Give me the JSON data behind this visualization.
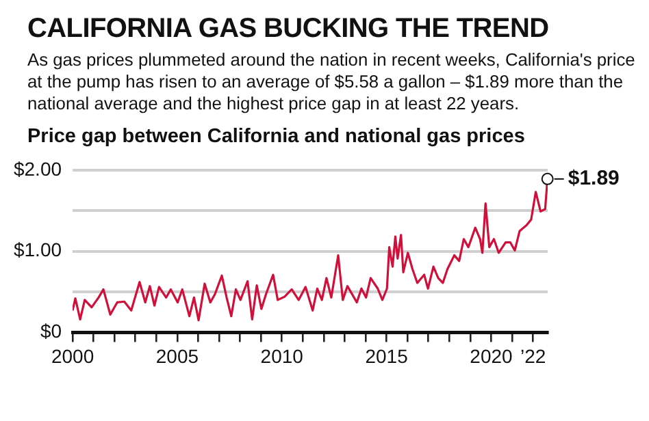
{
  "chart_data": {
    "type": "line",
    "title": "CALIFORNIA GAS BUCKING THE TREND",
    "subtitle": "As gas prices plummeted around the nation in recent weeks, California's price at the pump has risen to an average of $5.58 a gallon – $1.89 more than the national average and the highest price gap in at least 22 years.",
    "annotations": [
      "Price gap between California and national gas prices",
      {
        "text": "$1.89",
        "x": 2022.69,
        "y": 1.89
      }
    ],
    "x": [
      2000,
      2000.13,
      2000.36,
      2000.58,
      2000.91,
      2001.24,
      2001.47,
      2001.8,
      2002.13,
      2002.47,
      2002.8,
      2003.2,
      2003.47,
      2003.69,
      2003.91,
      2004.13,
      2004.47,
      2004.69,
      2005.02,
      2005.24,
      2005.58,
      2005.8,
      2006.02,
      2006.31,
      2006.58,
      2006.8,
      2007.13,
      2007.36,
      2007.58,
      2007.8,
      2008.02,
      2008.36,
      2008.58,
      2008.8,
      2009.02,
      2009.24,
      2009.58,
      2009.8,
      2010.13,
      2010.47,
      2010.8,
      2011.13,
      2011.47,
      2011.69,
      2011.91,
      2012.13,
      2012.36,
      2012.69,
      2012.91,
      2013.13,
      2013.36,
      2013.58,
      2013.8,
      2014.02,
      2014.24,
      2014.58,
      2014.8,
      2015.02,
      2015.13,
      2015.29,
      2015.42,
      2015.53,
      2015.69,
      2015.8,
      2016.02,
      2016.24,
      2016.47,
      2016.8,
      2016.98,
      2017.24,
      2017.47,
      2017.69,
      2017.91,
      2018.24,
      2018.47,
      2018.69,
      2018.91,
      2019.24,
      2019.47,
      2019.58,
      2019.73,
      2019.91,
      2020.13,
      2020.36,
      2020.69,
      2020.91,
      2021.13,
      2021.36,
      2021.69,
      2021.91,
      2022.13,
      2022.36,
      2022.58,
      2022.69
    ],
    "series": [
      {
        "color": "#d0103a",
        "values": [
          0.27,
          0.42,
          0.16,
          0.4,
          0.31,
          0.43,
          0.53,
          0.22,
          0.37,
          0.38,
          0.27,
          0.62,
          0.37,
          0.57,
          0.33,
          0.56,
          0.43,
          0.53,
          0.37,
          0.53,
          0.2,
          0.43,
          0.15,
          0.6,
          0.37,
          0.47,
          0.7,
          0.43,
          0.2,
          0.53,
          0.4,
          0.63,
          0.16,
          0.58,
          0.29,
          0.47,
          0.71,
          0.4,
          0.44,
          0.53,
          0.4,
          0.56,
          0.27,
          0.54,
          0.4,
          0.67,
          0.43,
          0.95,
          0.4,
          0.57,
          0.47,
          0.37,
          0.54,
          0.43,
          0.67,
          0.54,
          0.4,
          0.54,
          1.05,
          0.81,
          1.18,
          0.91,
          1.2,
          0.74,
          0.98,
          0.78,
          0.61,
          0.71,
          0.54,
          0.81,
          0.67,
          0.61,
          0.78,
          0.95,
          0.88,
          1.15,
          1.05,
          1.29,
          1.15,
          0.98,
          1.59,
          1.05,
          1.15,
          0.98,
          1.11,
          1.11,
          1.01,
          1.25,
          1.32,
          1.39,
          1.73,
          1.49,
          1.52,
          1.89
        ]
      }
    ],
    "xlim": [
      2000,
      2022.7
    ],
    "xticks": [
      2000,
      {
        "value": 2001,
        "label": null
      },
      {
        "value": 2002,
        "label": null
      },
      {
        "value": 2003,
        "label": null
      },
      {
        "value": 2004,
        "label": null
      },
      2005,
      {
        "value": 2006,
        "label": null
      },
      {
        "value": 2007,
        "label": null
      },
      {
        "value": 2008,
        "label": null
      },
      {
        "value": 2009,
        "label": null
      },
      2010,
      {
        "value": 2011,
        "label": null
      },
      {
        "value": 2012,
        "label": null
      },
      {
        "value": 2013,
        "label": null
      },
      {
        "value": 2014,
        "label": null
      },
      2015,
      {
        "value": 2016,
        "label": null
      },
      {
        "value": 2017,
        "label": null
      },
      {
        "value": 2018,
        "label": null
      },
      {
        "value": 2019,
        "label": null
      },
      2020,
      {
        "value": 2021,
        "label": null
      },
      {
        "value": 2022,
        "label": "’22"
      }
    ],
    "ylim": [
      0,
      2
    ],
    "yticks": [
      {
        "value": 0,
        "label": "$0"
      },
      {
        "value": 0.5,
        "label": null
      },
      {
        "value": 1,
        "label": "$1.00"
      },
      {
        "value": 1.5,
        "label": null
      },
      {
        "value": 2,
        "label": "$2.00"
      }
    ],
    "grid": "y",
    "marker": "none",
    "line_style": "solid"
  }
}
